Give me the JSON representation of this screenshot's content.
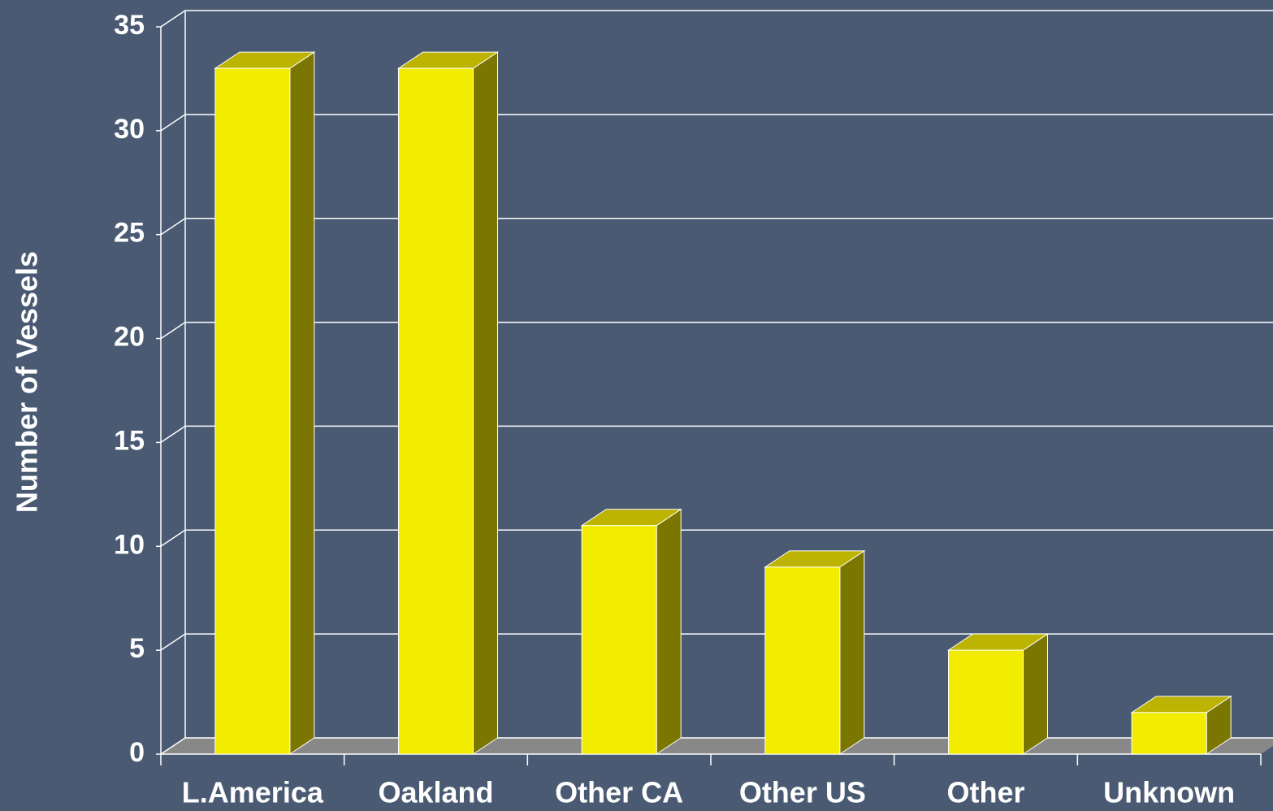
{
  "chart_data": {
    "type": "bar3d",
    "y_label": "Number of Vessels",
    "categories": [
      "L.America",
      "Oakland",
      "Other CA",
      "Other US",
      "Other",
      "Unknown"
    ],
    "values": [
      33,
      33,
      11,
      9,
      5,
      2
    ],
    "color": "#f2ec00",
    "ylim": [
      0,
      35
    ],
    "yticks": [
      0,
      5,
      10,
      15,
      20,
      25,
      30,
      35
    ],
    "grid": true
  }
}
